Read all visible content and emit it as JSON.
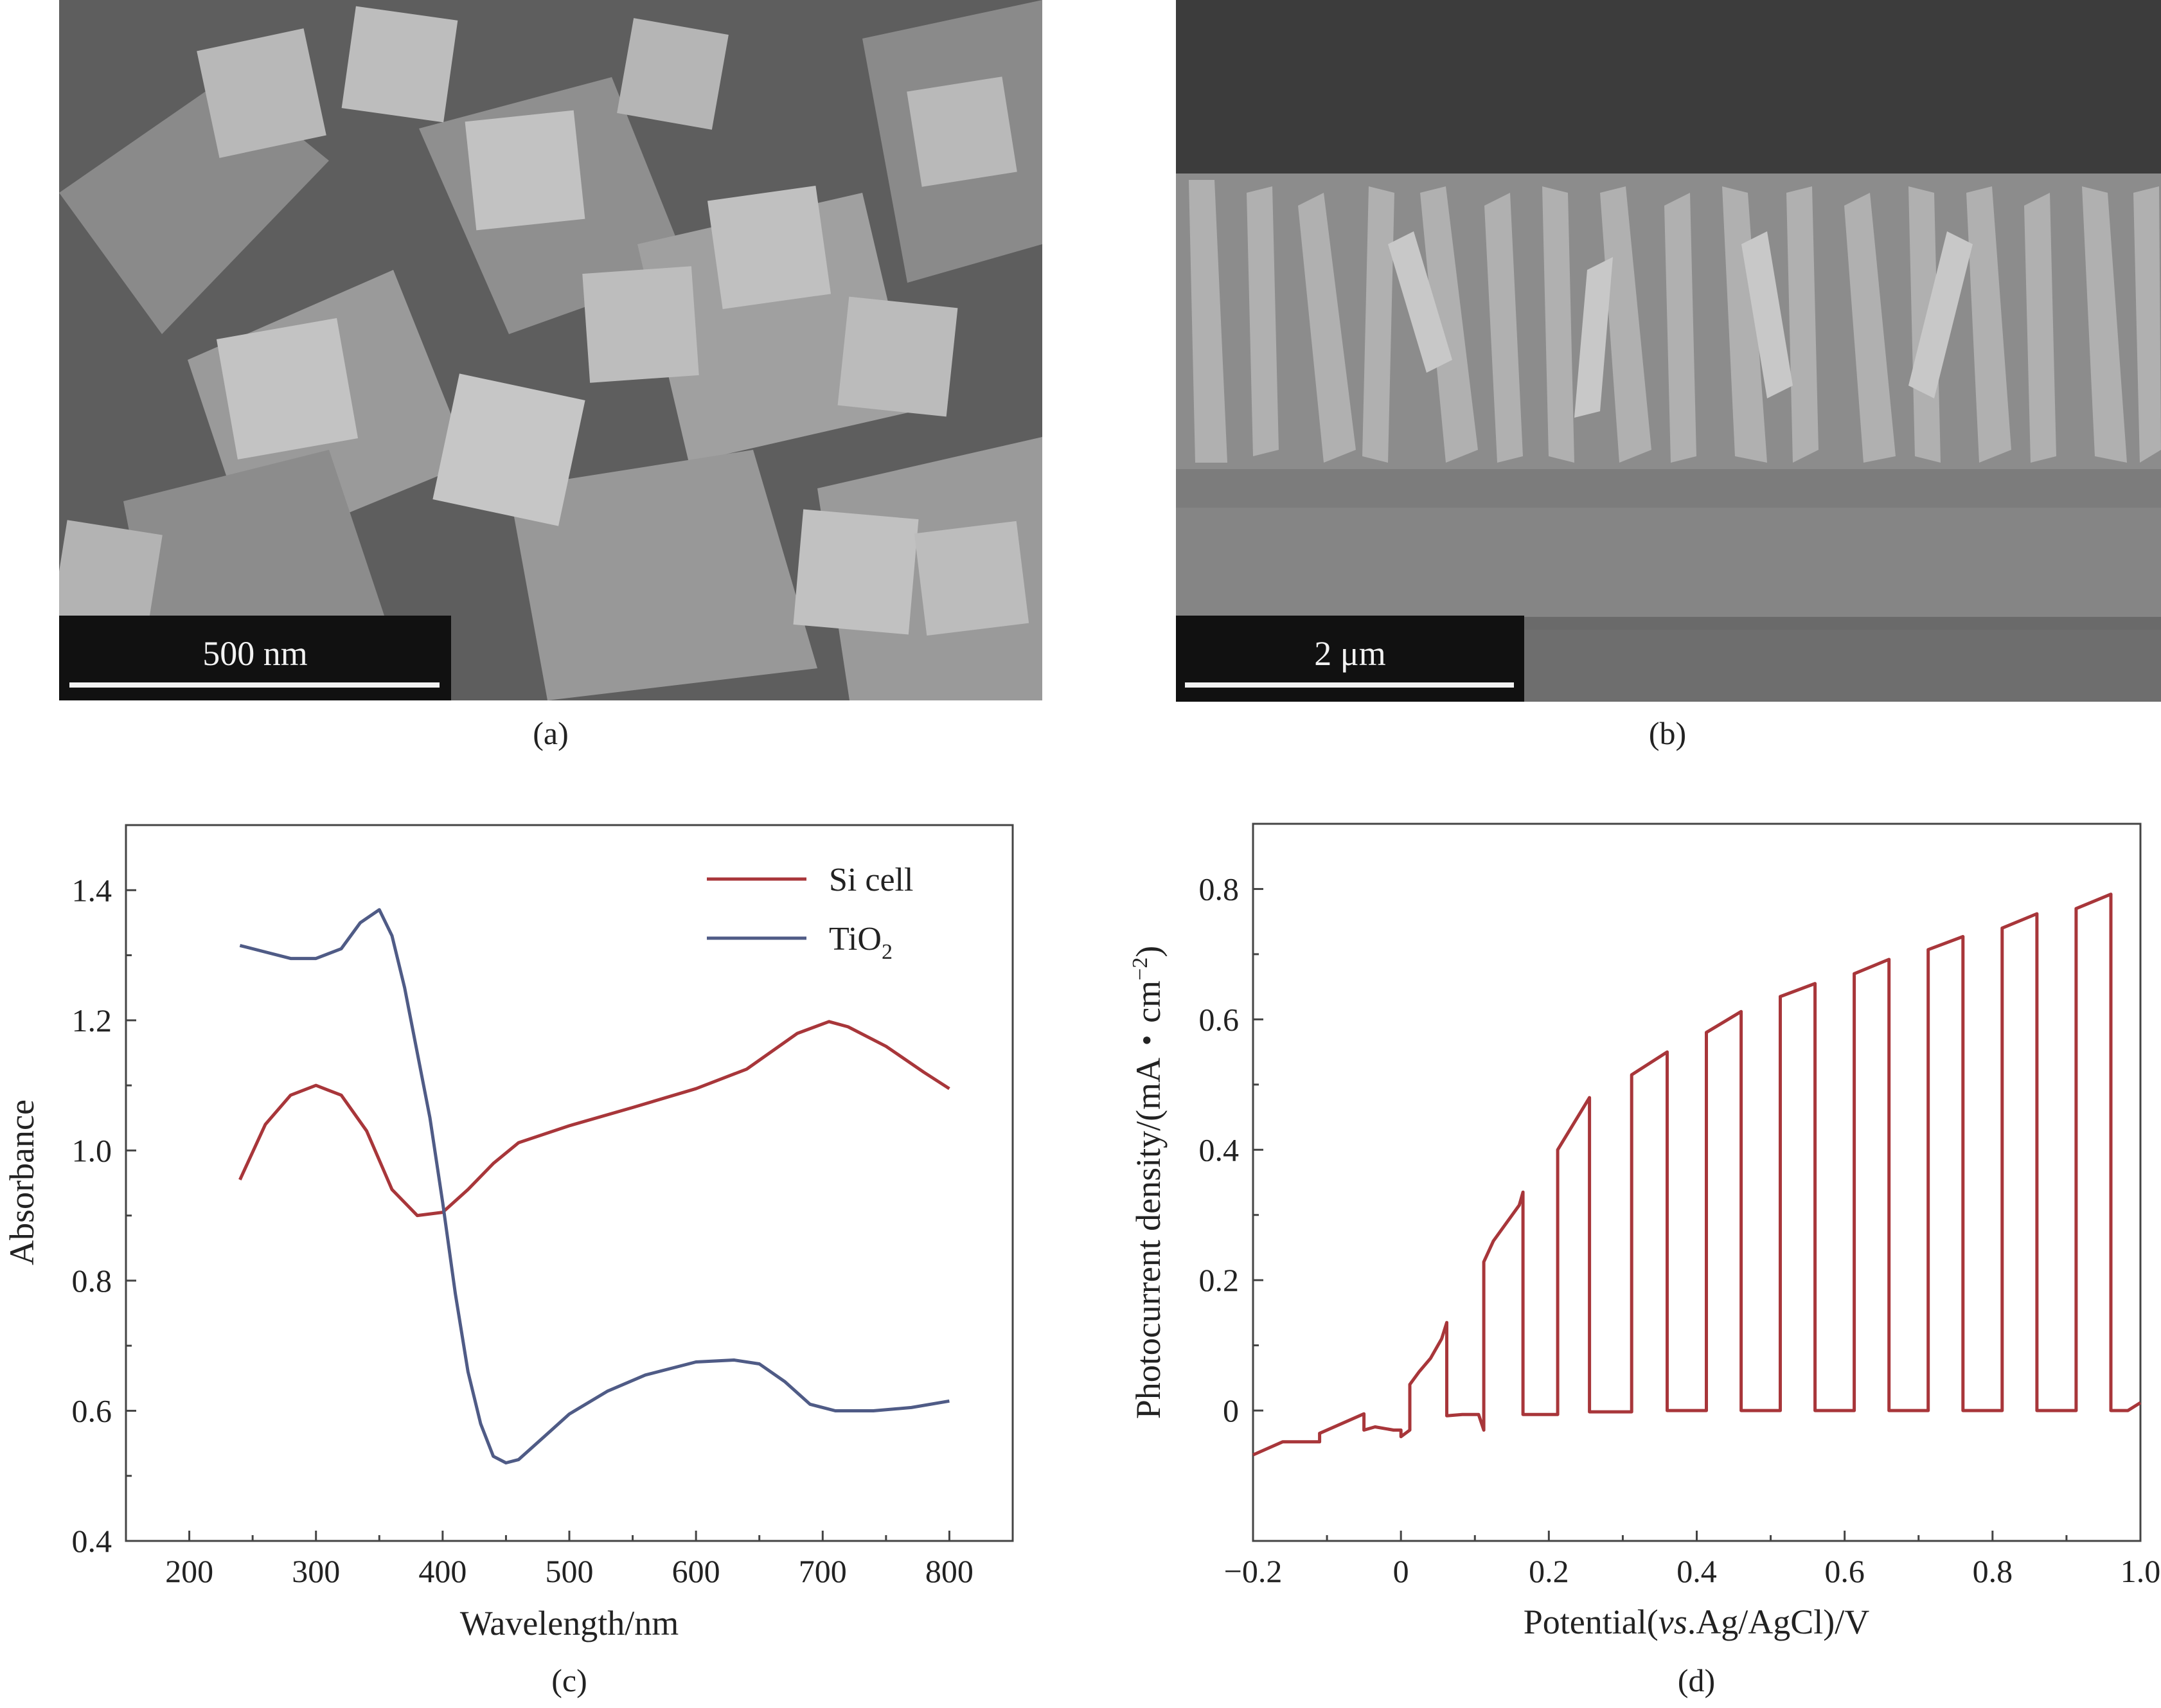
{
  "panels": {
    "a": {
      "caption": "(a)",
      "scale_label": "500 nm"
    },
    "b": {
      "caption": "(b)",
      "scale_label": "2 μm"
    },
    "c": {
      "caption": "(c)"
    },
    "d": {
      "caption": "(d)"
    }
  },
  "chart_data": [
    {
      "type": "line",
      "xlabel": "Wavelength/nm",
      "ylabel": "Absorbance",
      "xlim": [
        150,
        850
      ],
      "ylim": [
        0.4,
        1.5
      ],
      "xticks": [
        200,
        300,
        400,
        500,
        600,
        700,
        800
      ],
      "xtick_labels": [
        "200",
        "300",
        "400",
        "500",
        "600",
        "700",
        "800"
      ],
      "yticks": [
        0.4,
        0.6,
        0.8,
        1.0,
        1.2,
        1.4
      ],
      "ytick_labels": [
        "0.4",
        "0.6",
        "0.8",
        "1.0",
        "1.2",
        "1.4"
      ],
      "legend_position": "top-right",
      "series": [
        {
          "name": "Si cell",
          "color": "#a8363a",
          "x": [
            240,
            260,
            280,
            300,
            320,
            340,
            360,
            380,
            400,
            420,
            440,
            460,
            500,
            550,
            600,
            640,
            680,
            705,
            720,
            750,
            780,
            800
          ],
          "y": [
            0.955,
            1.04,
            1.085,
            1.1,
            1.085,
            1.03,
            0.94,
            0.9,
            0.905,
            0.94,
            0.98,
            1.012,
            1.038,
            1.066,
            1.095,
            1.125,
            1.18,
            1.198,
            1.19,
            1.16,
            1.12,
            1.095
          ]
        },
        {
          "name": "TiO2",
          "label_main": "TiO",
          "label_sub": "2",
          "color": "#4f5b86",
          "x": [
            240,
            260,
            280,
            300,
            320,
            335,
            350,
            360,
            370,
            380,
            390,
            400,
            410,
            420,
            430,
            440,
            450,
            460,
            480,
            500,
            530,
            560,
            600,
            630,
            650,
            670,
            690,
            710,
            740,
            770,
            800
          ],
          "y": [
            1.315,
            1.305,
            1.295,
            1.295,
            1.31,
            1.35,
            1.37,
            1.33,
            1.25,
            1.15,
            1.05,
            0.92,
            0.78,
            0.66,
            0.58,
            0.53,
            0.52,
            0.525,
            0.56,
            0.595,
            0.63,
            0.655,
            0.675,
            0.678,
            0.672,
            0.645,
            0.61,
            0.6,
            0.6,
            0.605,
            0.615
          ]
        }
      ]
    },
    {
      "type": "line",
      "xlabel": "Potential(vs.Ag/AgCl)/V",
      "xlabel_parts": [
        "Potential(",
        "vs",
        ".Ag/AgCl)/V"
      ],
      "ylabel": "Photocurrent density/(mA・cm−2)",
      "ylabel_main": "Photocurrent density/(mA・cm",
      "ylabel_sup": "−2",
      "ylabel_end": ")",
      "xlim": [
        -0.2,
        1.0
      ],
      "ylim": [
        -0.2,
        0.9
      ],
      "xticks": [
        -0.2,
        0,
        0.2,
        0.4,
        0.6,
        0.8,
        1.0
      ],
      "xtick_labels": [
        "−0.2",
        "0",
        "0.2",
        "0.4",
        "0.6",
        "0.8",
        "1.0"
      ],
      "yticks": [
        0,
        0.2,
        0.4,
        0.6,
        0.8
      ],
      "ytick_labels": [
        "0",
        "0.2",
        "0.4",
        "0.6",
        "0.8"
      ],
      "series": [
        {
          "name": "",
          "color": "#a8363a",
          "x": [
            -0.2,
            -0.16,
            -0.11,
            -0.11,
            -0.05,
            -0.05,
            -0.035,
            -0.035,
            -0.01,
            0.0,
            0.0,
            0.012,
            0.012,
            0.025,
            0.04,
            0.055,
            0.062,
            0.062,
            0.083,
            0.105,
            0.112,
            0.112,
            0.125,
            0.16,
            0.165,
            0.165,
            0.186,
            0.212,
            0.212,
            0.255,
            0.255,
            0.276,
            0.312,
            0.312,
            0.36,
            0.36,
            0.383,
            0.413,
            0.413,
            0.46,
            0.46,
            0.483,
            0.513,
            0.513,
            0.56,
            0.56,
            0.583,
            0.613,
            0.613,
            0.66,
            0.66,
            0.683,
            0.713,
            0.713,
            0.76,
            0.76,
            0.783,
            0.813,
            0.813,
            0.86,
            0.86,
            0.883,
            0.913,
            0.913,
            0.96,
            0.96,
            0.983,
            1.0
          ],
          "y": [
            -0.068,
            -0.048,
            -0.048,
            -0.035,
            -0.005,
            -0.03,
            -0.025,
            -0.025,
            -0.03,
            -0.03,
            -0.04,
            -0.03,
            0.04,
            0.06,
            0.08,
            0.11,
            0.135,
            -0.008,
            -0.006,
            -0.006,
            -0.03,
            0.228,
            0.26,
            0.315,
            0.335,
            -0.006,
            -0.006,
            -0.006,
            0.4,
            0.48,
            -0.002,
            -0.002,
            -0.002,
            0.515,
            0.55,
            0.0,
            0.0,
            0.0,
            0.58,
            0.612,
            0.0,
            0.0,
            0.0,
            0.635,
            0.655,
            0.0,
            0.0,
            0.0,
            0.67,
            0.692,
            0.0,
            0.0,
            0.0,
            0.707,
            0.727,
            0.0,
            0.0,
            0.0,
            0.74,
            0.762,
            0.0,
            0.0,
            0.0,
            0.77,
            0.792,
            0.0,
            0.0,
            0.012
          ]
        }
      ]
    }
  ]
}
